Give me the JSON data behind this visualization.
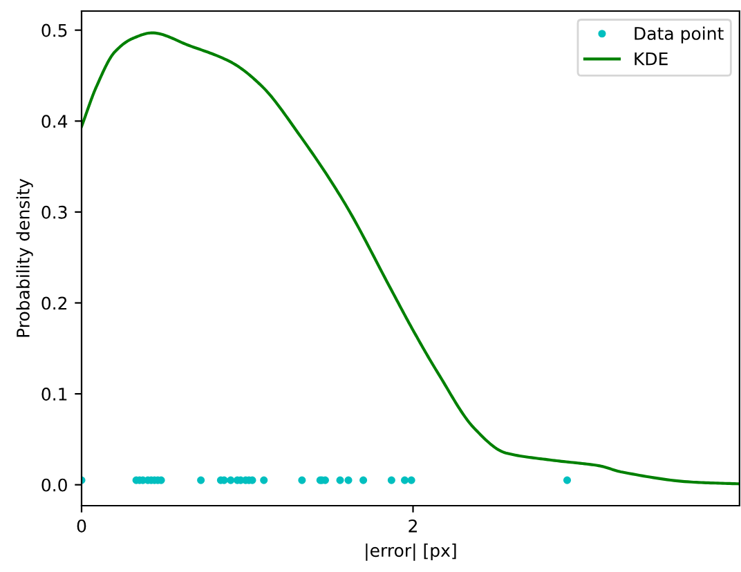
{
  "chart_data": {
    "type": "line",
    "xlabel": "|error| [px]",
    "ylabel": "Probability density",
    "series": [
      {
        "name": "Data point",
        "type": "scatter",
        "color": "#00bfbf",
        "marker": "circle",
        "x": [
          0.0,
          0.33,
          0.35,
          0.37,
          0.4,
          0.42,
          0.44,
          0.46,
          0.48,
          0.72,
          0.84,
          0.86,
          0.9,
          0.94,
          0.96,
          0.99,
          1.01,
          1.03,
          1.1,
          1.33,
          1.44,
          1.45,
          1.47,
          1.56,
          1.61,
          1.7,
          1.87,
          1.95,
          1.99,
          2.93
        ],
        "values": [
          0.005,
          0.005,
          0.005,
          0.005,
          0.005,
          0.005,
          0.005,
          0.005,
          0.005,
          0.005,
          0.005,
          0.005,
          0.005,
          0.005,
          0.005,
          0.005,
          0.005,
          0.005,
          0.005,
          0.005,
          0.005,
          0.005,
          0.005,
          0.005,
          0.005,
          0.005,
          0.005,
          0.005,
          0.005,
          0.005
        ]
      },
      {
        "name": "KDE",
        "color": "#008000",
        "x": [
          0,
          0.09,
          0.2,
          0.31,
          0.425,
          0.65,
          0.9,
          1.09,
          1.31,
          1.59,
          1.87,
          2.0,
          2.15,
          2.37,
          2.56,
          2.84,
          3.12,
          3.26,
          3.68,
          3.97
        ],
        "values": [
          0.394,
          0.438,
          0.476,
          0.491,
          0.497,
          0.483,
          0.465,
          0.438,
          0.386,
          0.309,
          0.214,
          0.17,
          0.123,
          0.062,
          0.035,
          0.027,
          0.021,
          0.014,
          0.003,
          0.001
        ]
      }
    ],
    "xlim": [
      0,
      3.97
    ],
    "ylim": [
      -0.023,
      0.521
    ],
    "xticks": [
      0,
      2
    ],
    "yticks": [
      {
        "value": 0,
        "label": "0.0"
      },
      0.1,
      0.2,
      0.3,
      0.4,
      0.5
    ],
    "grid": false,
    "legend": "upper right"
  }
}
